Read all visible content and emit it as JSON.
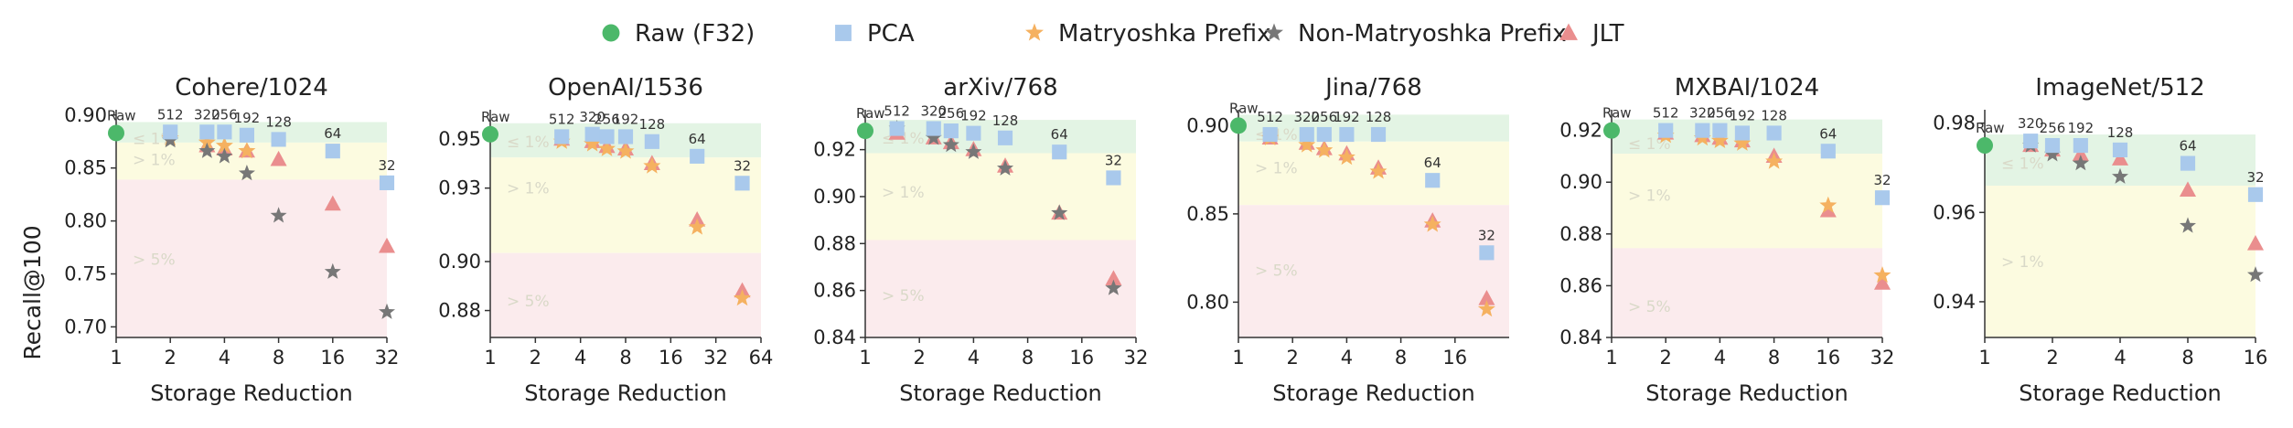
{
  "legend": {
    "items": [
      {
        "name": "Raw (F32)",
        "marker": "circle",
        "color": "#4cb86a"
      },
      {
        "name": "PCA",
        "marker": "square",
        "color": "#a9c9ec"
      },
      {
        "name": "Matryoshka Prefix",
        "marker": "star",
        "color": "#f5b160"
      },
      {
        "name": "Non-Matryoshka Prefix",
        "marker": "star",
        "color": "#777777"
      },
      {
        "name": "JLT",
        "marker": "triangle",
        "color": "#ea8e8e"
      }
    ]
  },
  "shared_axes": {
    "xlabel": "Storage Reduction",
    "ylabel": "Recall@100",
    "xscale": "log2"
  },
  "zone_labels": {
    "within_1": "≤ 1%",
    "over_1": "> 1%",
    "over_5": "> 5%"
  },
  "zone_colors": {
    "green": "#e3f4e4",
    "yellow": "#fcfbe0",
    "red": "#fbebed"
  },
  "chart_data": [
    {
      "type": "scatter",
      "title": "Cohere/1024",
      "xlim": [
        1,
        32
      ],
      "xticks": [
        1,
        2,
        4,
        8,
        16,
        32
      ],
      "xtick_labels": [
        "1",
        "2",
        "4",
        "8",
        "16",
        "32"
      ],
      "ylim": [
        0.69,
        0.905
      ],
      "yticks": [
        0.7,
        0.75,
        0.8,
        0.85,
        0.9
      ],
      "ytick_labels": [
        "0.70",
        "0.75",
        "0.80",
        "0.85",
        "0.90"
      ],
      "zones": {
        "green_low": 0.874,
        "yellow_low": 0.839
      },
      "zone_label_y": {
        "within_1": 0.878,
        "over_1": 0.858,
        "over_5": 0.764
      },
      "raw": {
        "x": 1,
        "y": 0.883,
        "label": "Raw"
      },
      "pca": {
        "x": [
          2,
          3.2,
          4,
          5.33,
          8,
          16,
          32
        ],
        "y": [
          0.884,
          0.884,
          0.884,
          0.881,
          0.877,
          0.866,
          0.836
        ],
        "labels": [
          "512",
          "320",
          "256",
          "192",
          "128",
          "64",
          "32"
        ]
      },
      "matryoshka": {
        "x": [
          2,
          3.2,
          4,
          5.33
        ],
        "y": [
          0.878,
          0.874,
          0.871,
          0.866
        ]
      },
      "non_matryoshka": {
        "x": [
          2,
          3.2,
          4,
          5.33,
          8,
          16,
          32
        ],
        "y": [
          0.876,
          0.866,
          0.861,
          0.845,
          0.805,
          0.752,
          0.714
        ]
      },
      "jlt": {
        "x": [
          3.2,
          4,
          5.33,
          8,
          16,
          32
        ],
        "y": [
          0.871,
          0.868,
          0.866,
          0.858,
          0.816,
          0.776
        ]
      }
    },
    {
      "type": "scatter",
      "title": "OpenAI/1536",
      "xlim": [
        1,
        64
      ],
      "xticks": [
        1,
        2,
        4,
        8,
        16,
        32,
        64
      ],
      "xtick_labels": [
        "1",
        "2",
        "4",
        "8",
        "16",
        "32",
        "64"
      ],
      "ylim": [
        0.869,
        0.962
      ],
      "yticks": [
        0.88,
        0.9,
        0.93,
        0.95
      ],
      "ytick_labels": [
        "0.88",
        "0.90",
        "0.93",
        "0.95"
      ],
      "zones": {
        "green_low": 0.9425,
        "yellow_low": 0.9035
      },
      "zone_label_y": {
        "within_1": 0.949,
        "over_1": 0.93,
        "over_5": 0.884
      },
      "raw": {
        "x": 1,
        "y": 0.952,
        "label": "Raw"
      },
      "pca": {
        "x": [
          3,
          4.8,
          6,
          8,
          12,
          24,
          48
        ],
        "y": [
          0.951,
          0.952,
          0.951,
          0.951,
          0.949,
          0.943,
          0.932
        ],
        "labels": [
          "512",
          "320",
          "256",
          "192",
          "128",
          "64",
          "32"
        ]
      },
      "matryoshka": {
        "x": [
          3,
          4.8,
          6,
          8,
          12,
          24,
          48
        ],
        "y": [
          0.949,
          0.948,
          0.946,
          0.945,
          0.939,
          0.914,
          0.885
        ]
      },
      "non_matryoshka": {
        "x": [],
        "y": []
      },
      "jlt": {
        "x": [
          3,
          4.8,
          6,
          8,
          12,
          24,
          48
        ],
        "y": [
          0.95,
          0.949,
          0.947,
          0.946,
          0.94,
          0.917,
          0.888
        ]
      }
    },
    {
      "type": "scatter",
      "title": "arXiv/768",
      "xlim": [
        1,
        32
      ],
      "xticks": [
        1,
        2,
        4,
        8,
        16,
        32
      ],
      "xtick_labels": [
        "1",
        "2",
        "4",
        "8",
        "16",
        "32"
      ],
      "ylim": [
        0.84,
        0.937
      ],
      "yticks": [
        0.84,
        0.86,
        0.88,
        0.9,
        0.92
      ],
      "ytick_labels": [
        "0.84",
        "0.86",
        "0.88",
        "0.90",
        "0.92"
      ],
      "zones": {
        "green_low": 0.9185,
        "yellow_low": 0.8815
      },
      "zone_label_y": {
        "within_1": 0.925,
        "over_1": 0.902,
        "over_5": 0.858
      },
      "raw": {
        "x": 1,
        "y": 0.928,
        "label": "Raw"
      },
      "pca": {
        "x": [
          1.5,
          2.4,
          3,
          4,
          6,
          12,
          24
        ],
        "y": [
          0.929,
          0.929,
          0.928,
          0.927,
          0.925,
          0.919,
          0.908
        ],
        "labels": [
          "512",
          "320",
          "256",
          "192",
          "128",
          "64",
          "32"
        ]
      },
      "matryoshka": {
        "x": [],
        "y": []
      },
      "non_matryoshka": {
        "x": [
          1.5,
          2.4,
          3,
          4,
          6,
          12,
          24
        ],
        "y": [
          0.929,
          0.925,
          0.922,
          0.919,
          0.912,
          0.893,
          0.861
        ]
      },
      "jlt": {
        "x": [
          1.5,
          2.4,
          3,
          4,
          6,
          12,
          24
        ],
        "y": [
          0.927,
          0.925,
          0.923,
          0.92,
          0.913,
          0.893,
          0.865
        ]
      }
    },
    {
      "type": "scatter",
      "title": "Jina/768",
      "xlim": [
        1,
        32
      ],
      "xticks": [
        1,
        2,
        4,
        8,
        16
      ],
      "xtick_labels": [
        "1",
        "2",
        "4",
        "8",
        "16"
      ],
      "ylim": [
        0.78,
        0.909
      ],
      "yticks": [
        0.8,
        0.85,
        0.9
      ],
      "ytick_labels": [
        "0.80",
        "0.85",
        "0.90"
      ],
      "zones": {
        "green_low": 0.891,
        "yellow_low": 0.855
      },
      "zone_label_y": {
        "within_1": 0.895,
        "over_1": 0.876,
        "over_5": 0.818
      },
      "raw": {
        "x": 1,
        "y": 0.9,
        "label": "Raw"
      },
      "pca": {
        "x": [
          1.5,
          2.4,
          3,
          4,
          6,
          12,
          24
        ],
        "y": [
          0.895,
          0.895,
          0.895,
          0.895,
          0.895,
          0.869,
          0.828
        ],
        "labels": [
          "512",
          "320",
          "256",
          "192",
          "128",
          "64",
          "32"
        ]
      },
      "matryoshka": {
        "x": [
          1.5,
          2.4,
          3,
          4,
          6,
          12,
          24
        ],
        "y": [
          0.893,
          0.889,
          0.886,
          0.882,
          0.874,
          0.844,
          0.796
        ]
      },
      "non_matryoshka": {
        "x": [],
        "y": []
      },
      "jlt": {
        "x": [
          1.5,
          2.4,
          3,
          4,
          6,
          12,
          24
        ],
        "y": [
          0.893,
          0.89,
          0.887,
          0.884,
          0.876,
          0.846,
          0.802
        ]
      }
    },
    {
      "type": "scatter",
      "title": "MXBAI/1024",
      "xlim": [
        1,
        32
      ],
      "xticks": [
        1,
        2,
        4,
        8,
        16,
        32
      ],
      "xtick_labels": [
        "1",
        "2",
        "4",
        "8",
        "16",
        "32"
      ],
      "ylim": [
        0.84,
        0.928
      ],
      "yticks": [
        0.84,
        0.86,
        0.88,
        0.9,
        0.92
      ],
      "ytick_labels": [
        "0.84",
        "0.86",
        "0.88",
        "0.90",
        "0.92"
      ],
      "zones": {
        "green_low": 0.911,
        "yellow_low": 0.8745
      },
      "zone_label_y": {
        "within_1": 0.915,
        "over_1": 0.895,
        "over_5": 0.852
      },
      "raw": {
        "x": 1,
        "y": 0.92,
        "label": "Raw"
      },
      "pca": {
        "x": [
          2,
          3.2,
          4,
          5.33,
          8,
          16,
          32
        ],
        "y": [
          0.92,
          0.92,
          0.92,
          0.919,
          0.919,
          0.912,
          0.894
        ],
        "labels": [
          "512",
          "320",
          "256",
          "192",
          "128",
          "64",
          "32"
        ]
      },
      "matryoshka": {
        "x": [
          2,
          3.2,
          4,
          5.33,
          8,
          16,
          32
        ],
        "y": [
          0.918,
          0.917,
          0.916,
          0.915,
          0.908,
          0.891,
          0.864
        ]
      },
      "non_matryoshka": {
        "x": [],
        "y": []
      },
      "jlt": {
        "x": [
          2,
          3.2,
          4,
          5.33,
          8,
          16,
          32
        ],
        "y": [
          0.919,
          0.918,
          0.917,
          0.916,
          0.91,
          0.889,
          0.861
        ]
      }
    },
    {
      "type": "scatter",
      "title": "ImageNet/512",
      "xlim": [
        1,
        16
      ],
      "xticks": [
        1,
        2,
        4,
        8,
        16
      ],
      "xtick_labels": [
        "1",
        "2",
        "4",
        "8",
        "16"
      ],
      "ylim": [
        0.932,
        0.983
      ],
      "yticks": [
        0.94,
        0.96,
        0.98
      ],
      "ytick_labels": [
        "0.94",
        "0.96",
        "0.98"
      ],
      "zones": {
        "green_low": 0.966,
        "yellow_low": 0.928
      },
      "zone_label_y": {
        "within_1": 0.971,
        "over_1": 0.949,
        "over_5": null
      },
      "raw": {
        "x": 1,
        "y": 0.975,
        "label": "Raw"
      },
      "pca": {
        "x": [
          1.6,
          2,
          2.67,
          4,
          8,
          16
        ],
        "y": [
          0.976,
          0.975,
          0.975,
          0.974,
          0.971,
          0.964
        ],
        "labels": [
          "320",
          "256",
          "192",
          "128",
          "64",
          "32"
        ]
      },
      "matryoshka": {
        "x": [],
        "y": []
      },
      "non_matryoshka": {
        "x": [
          1.6,
          2,
          2.67,
          4,
          8,
          16
        ],
        "y": [
          0.975,
          0.973,
          0.971,
          0.968,
          0.957,
          0.946
        ]
      },
      "jlt": {
        "x": [
          1.6,
          2,
          2.67,
          4,
          8,
          16
        ],
        "y": [
          0.975,
          0.974,
          0.973,
          0.972,
          0.965,
          0.953
        ]
      }
    }
  ]
}
